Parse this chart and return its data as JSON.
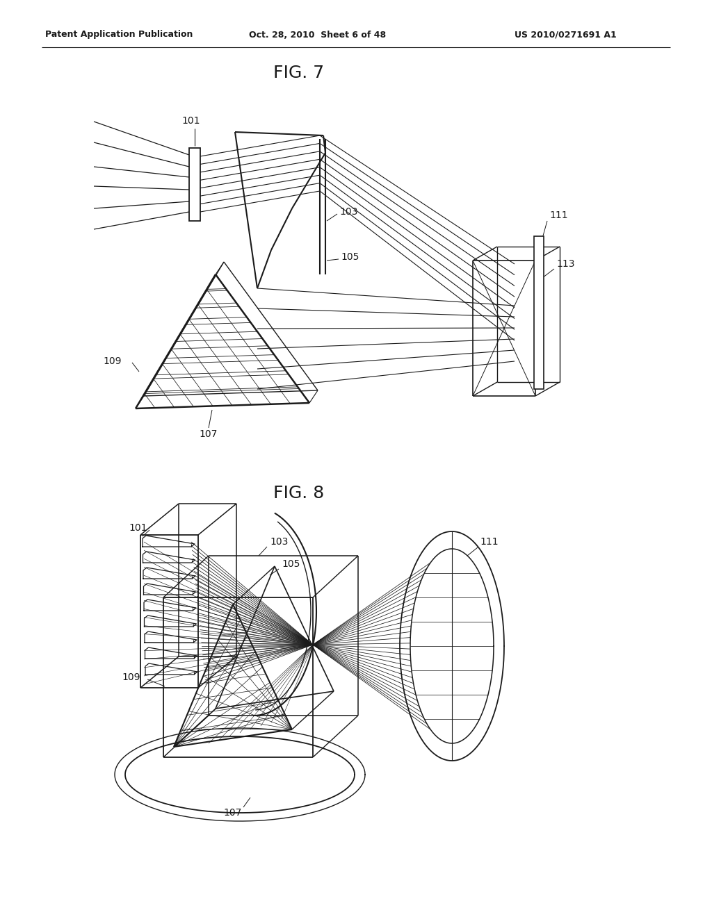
{
  "background_color": "#ffffff",
  "header_left": "Patent Application Publication",
  "header_mid": "Oct. 28, 2010  Sheet 6 of 48",
  "header_right": "US 2010/0271691 A1",
  "fig7_title": "FIG. 7",
  "fig8_title": "FIG. 8",
  "lc": "#1a1a1a",
  "header_fontsize": 10,
  "title_fontsize": 18,
  "label_fontsize": 10
}
